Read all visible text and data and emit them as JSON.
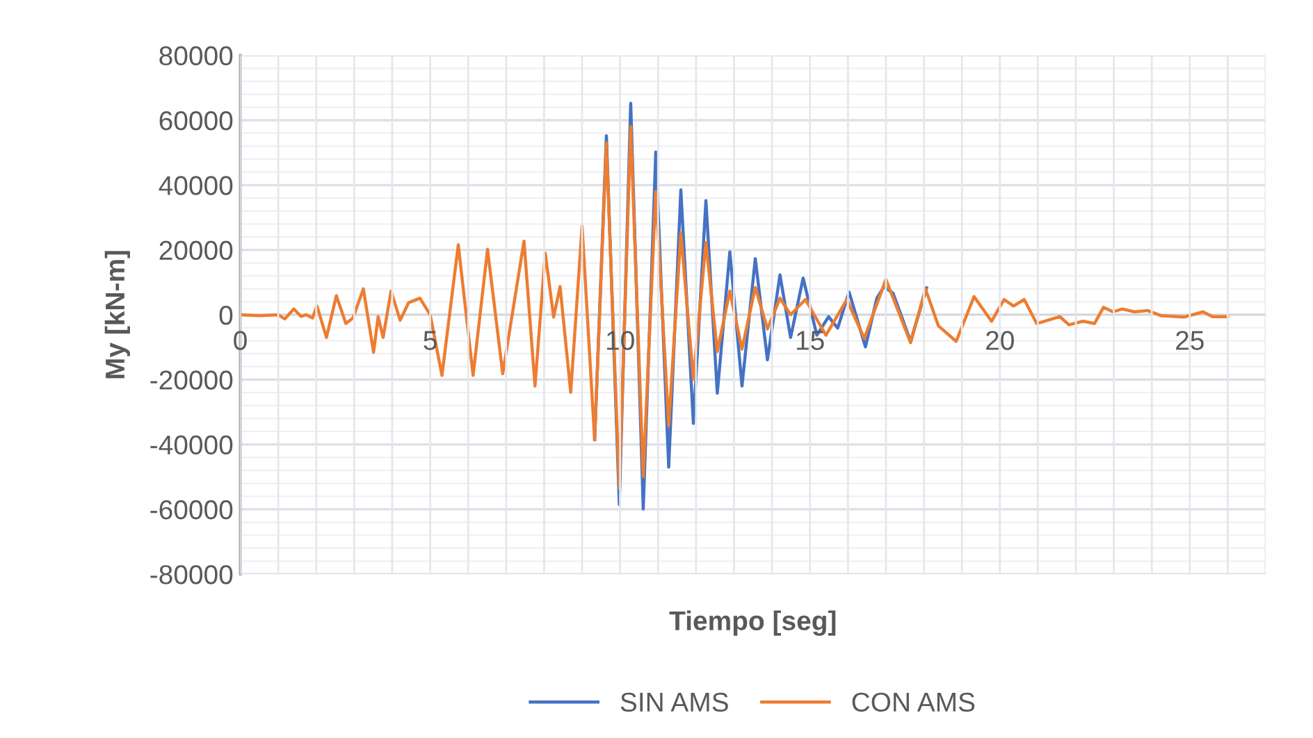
{
  "chart_data": {
    "type": "line",
    "xlabel": "Tiempo [seg]",
    "ylabel": "My [kN-m]",
    "xlim": [
      0,
      27
    ],
    "xticks": [
      0,
      5,
      10,
      15,
      20,
      25
    ],
    "ylim": [
      -80000,
      80000
    ],
    "yticks": [
      -80000,
      -60000,
      -40000,
      -20000,
      0,
      20000,
      40000,
      60000,
      80000
    ],
    "grid": true,
    "legend": "bottom",
    "marker": "none",
    "line_style": "solid",
    "series": [
      {
        "name": "SIN AMS",
        "color": "#4472c4",
        "x": [
          9.33,
          9.64,
          9.98,
          10.28,
          10.61,
          10.94,
          11.28,
          11.6,
          11.93,
          12.26,
          12.56,
          12.89,
          13.21,
          13.56,
          13.88,
          14.21,
          14.49,
          14.82,
          15.18,
          15.49,
          15.73,
          16.03,
          16.46,
          16.76,
          16.95,
          17.19,
          17.65,
          18.07
        ],
        "values": [
          -38500,
          55200,
          -58500,
          65200,
          -59900,
          50200,
          -47000,
          38500,
          -33500,
          35200,
          -24200,
          19400,
          -22000,
          17300,
          -13900,
          12300,
          -7000,
          11300,
          -6300,
          -600,
          -4100,
          7000,
          -9900,
          5100,
          8700,
          6600,
          -8200,
          8300
        ]
      },
      {
        "name": "CON AMS",
        "color": "#ed7d31",
        "x": [
          0,
          0.5,
          1.0,
          1.17,
          1.41,
          1.6,
          1.74,
          1.9,
          2.02,
          2.27,
          2.53,
          2.78,
          2.97,
          3.24,
          3.51,
          3.63,
          3.76,
          3.97,
          4.21,
          4.43,
          4.73,
          5.0,
          5.31,
          5.74,
          6.13,
          6.51,
          6.91,
          7.47,
          7.76,
          8.03,
          8.25,
          8.42,
          8.7,
          9.0,
          9.33,
          9.64,
          9.98,
          10.28,
          10.61,
          10.94,
          11.28,
          11.6,
          11.93,
          12.26,
          12.56,
          12.89,
          13.21,
          13.56,
          13.88,
          14.21,
          14.49,
          14.88,
          15.42,
          15.97,
          16.43,
          17.0,
          17.65,
          18.04,
          18.38,
          18.85,
          19.32,
          19.78,
          20.11,
          20.36,
          20.64,
          20.97,
          21.58,
          21.82,
          22.19,
          22.49,
          22.73,
          22.98,
          23.22,
          23.55,
          23.89,
          24.25,
          24.86,
          25.35,
          25.6,
          26.0
        ],
        "values": [
          0,
          -300,
          0,
          -1300,
          1800,
          -500,
          0,
          -1000,
          2700,
          -7000,
          5900,
          -2700,
          -1000,
          8000,
          -11600,
          -600,
          -7000,
          7300,
          -1700,
          3700,
          5100,
          0,
          -18700,
          21600,
          -18700,
          20200,
          -18200,
          22700,
          -22000,
          19000,
          -700,
          8700,
          -23900,
          27300,
          -38500,
          53000,
          -53500,
          58000,
          -49900,
          38000,
          -34200,
          25200,
          -19900,
          22300,
          -11300,
          7300,
          -10600,
          8400,
          -4400,
          5100,
          0,
          4700,
          -6300,
          4700,
          -7300,
          10900,
          -8600,
          8000,
          -3400,
          -8200,
          5600,
          -2000,
          4700,
          2700,
          4700,
          -2700,
          -600,
          -3100,
          -2000,
          -2700,
          2300,
          900,
          1800,
          900,
          1300,
          -300,
          -700,
          900,
          -600,
          -600
        ]
      }
    ]
  }
}
